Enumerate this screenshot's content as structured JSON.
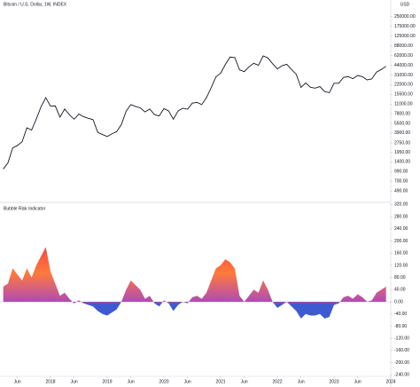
{
  "chart_data": [
    {
      "type": "line",
      "title": "Bitcoin / U.S. Dollar, 1W, INDEX",
      "axis_label": "USD",
      "log_scale": true,
      "grid": false,
      "color": "#131722",
      "x": [
        "2017-03",
        "2017-04",
        "2017-05",
        "2017-06",
        "2017-07",
        "2017-08",
        "2017-09",
        "2017-10",
        "2017-11",
        "2017-12",
        "2018-01",
        "2018-02",
        "2018-03",
        "2018-04",
        "2018-05",
        "2018-06",
        "2018-07",
        "2018-08",
        "2018-09",
        "2018-10",
        "2018-11",
        "2018-12",
        "2019-01",
        "2019-02",
        "2019-03",
        "2019-04",
        "2019-05",
        "2019-06",
        "2019-07",
        "2019-08",
        "2019-09",
        "2019-10",
        "2019-11",
        "2019-12",
        "2020-01",
        "2020-02",
        "2020-03",
        "2020-04",
        "2020-05",
        "2020-06",
        "2020-07",
        "2020-08",
        "2020-09",
        "2020-10",
        "2020-11",
        "2020-12",
        "2021-01",
        "2021-02",
        "2021-03",
        "2021-04",
        "2021-05",
        "2021-06",
        "2021-07",
        "2021-08",
        "2021-09",
        "2021-10",
        "2021-11",
        "2021-12",
        "2022-01",
        "2022-02",
        "2022-03",
        "2022-04",
        "2022-05",
        "2022-06",
        "2022-07",
        "2022-08",
        "2022-09",
        "2022-10",
        "2022-11",
        "2022-12",
        "2023-01",
        "2023-02",
        "2023-03",
        "2023-04",
        "2023-05",
        "2023-06",
        "2023-07",
        "2023-08",
        "2023-09",
        "2023-10",
        "2023-11",
        "2023-12"
      ],
      "values": [
        1080,
        1350,
        2300,
        2500,
        2870,
        4700,
        4340,
        6450,
        10000,
        13800,
        10200,
        10300,
        6900,
        9200,
        7500,
        6400,
        7700,
        7000,
        6600,
        6300,
        4000,
        3700,
        3450,
        3800,
        4100,
        5300,
        8500,
        10800,
        10100,
        9600,
        8300,
        9200,
        7550,
        7200,
        9350,
        8600,
        6400,
        8600,
        9450,
        9140,
        11350,
        11650,
        10780,
        13800,
        19700,
        29000,
        33100,
        45200,
        58800,
        57700,
        37300,
        35000,
        41500,
        47100,
        43800,
        61300,
        57000,
        46300,
        38500,
        43200,
        45500,
        37700,
        31800,
        19900,
        23300,
        20000,
        19400,
        20500,
        17200,
        16500,
        23100,
        23100,
        28500,
        29200,
        27200,
        30500,
        29200,
        26000,
        27000,
        34500,
        37700,
        42300
      ],
      "ylim": [
        350,
        350000
      ],
      "yticks": [
        {
          "value": 250000,
          "label": "250000.00"
        },
        {
          "value": 175000,
          "label": "175000.00"
        },
        {
          "value": 125000,
          "label": "125000.00"
        },
        {
          "value": 88000,
          "label": "88000.00"
        },
        {
          "value": 62000,
          "label": "62000.00"
        },
        {
          "value": 44000,
          "label": "44000.00"
        },
        {
          "value": 31000,
          "label": "31000.00"
        },
        {
          "value": 22000,
          "label": "22000.00"
        },
        {
          "value": 15500,
          "label": "15500.00"
        },
        {
          "value": 11000,
          "label": "11000.00"
        },
        {
          "value": 7800,
          "label": "7800.00"
        },
        {
          "value": 5500,
          "label": "5500.00"
        },
        {
          "value": 3900,
          "label": "3900.00"
        },
        {
          "value": 2750,
          "label": "2750.00"
        },
        {
          "value": 1950,
          "label": "1950.00"
        },
        {
          "value": 1400,
          "label": "1400.00"
        },
        {
          "value": 990,
          "label": "990.00"
        },
        {
          "value": 700,
          "label": "700.00"
        },
        {
          "value": 490,
          "label": "490.00"
        }
      ]
    },
    {
      "type": "area",
      "title": "Bubble Risk Indicator",
      "grid": false,
      "colors": [
        "#f23645",
        "#ff7a3a",
        "#b04ab8",
        "#3d5ad1"
      ],
      "values": [
        50,
        60,
        110,
        90,
        70,
        110,
        80,
        120,
        150,
        180,
        100,
        60,
        20,
        30,
        10,
        -5,
        5,
        -5,
        -10,
        -15,
        -30,
        -40,
        -45,
        -35,
        -25,
        0,
        40,
        70,
        55,
        40,
        10,
        20,
        -5,
        -15,
        5,
        -5,
        -30,
        -10,
        0,
        -5,
        15,
        20,
        10,
        30,
        70,
        110,
        120,
        140,
        130,
        110,
        20,
        0,
        20,
        40,
        30,
        70,
        40,
        0,
        -20,
        -10,
        0,
        -15,
        -30,
        -55,
        -40,
        -45,
        -45,
        -40,
        -55,
        -50,
        -10,
        -5,
        15,
        20,
        10,
        25,
        15,
        0,
        5,
        30,
        40,
        50
      ],
      "ylim": [
        -245,
        327
      ],
      "yticks": [
        {
          "value": 320,
          "label": "320.00"
        },
        {
          "value": 280,
          "label": "280.00"
        },
        {
          "value": 240,
          "label": "240.00"
        },
        {
          "value": 200,
          "label": "200.00"
        },
        {
          "value": 160,
          "label": "160.00"
        },
        {
          "value": 120,
          "label": "120.00"
        },
        {
          "value": 80,
          "label": "80.00"
        },
        {
          "value": 40,
          "label": "40.00"
        },
        {
          "value": 0,
          "label": "0.00"
        },
        {
          "value": -40,
          "label": "-40.00"
        },
        {
          "value": -80,
          "label": "-80.00"
        },
        {
          "value": -120,
          "label": "-120.00"
        },
        {
          "value": -160,
          "label": "-160.00"
        },
        {
          "value": -200,
          "label": "-200.00"
        },
        {
          "value": -240,
          "label": "-240.00"
        }
      ]
    },
    {
      "type": "time_axis",
      "xticks": [
        {
          "value": "2017-06",
          "label": "Jun"
        },
        "2018",
        {
          "value": "2018-06",
          "label": "Jun"
        },
        "2019",
        {
          "value": "2019-06",
          "label": "Jun"
        },
        "2020",
        {
          "value": "2020-06",
          "label": "Jun"
        },
        "2021",
        {
          "value": "2021-06",
          "label": "Jun"
        },
        "2022",
        {
          "value": "2022-06",
          "label": "Jun"
        },
        "2023",
        {
          "value": "2023-06",
          "label": "Jun"
        },
        "2024"
      ]
    }
  ]
}
